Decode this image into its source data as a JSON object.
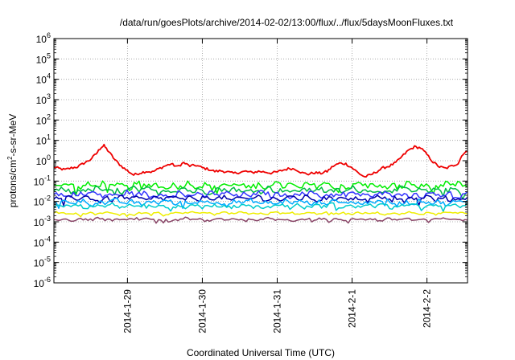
{
  "chart_data": {
    "type": "line",
    "title": "/data/run/goesPlots/archive/2014-02-02/13:00/flux/../flux/5daysMoonFluxes.txt",
    "xlabel": "Coordinated Universal Time (UTC)",
    "ylabel": "protons/cm2-s-sr-MeV",
    "ylabel_parts": {
      "base": "protons/cm",
      "sup": "2",
      "rest": "-s-sr-MeV"
    },
    "y_scale": "log",
    "ylim": [
      1e-06,
      1000000.0
    ],
    "y_ticks": [
      {
        "value": 1e-06,
        "base": "10",
        "exp": "-6"
      },
      {
        "value": 1e-05,
        "base": "10",
        "exp": "-5"
      },
      {
        "value": 0.0001,
        "base": "10",
        "exp": "-4"
      },
      {
        "value": 0.001,
        "base": "10",
        "exp": "-3"
      },
      {
        "value": 0.01,
        "base": "10",
        "exp": "-2"
      },
      {
        "value": 0.1,
        "base": "10",
        "exp": "-1"
      },
      {
        "value": 1,
        "base": "10",
        "exp": "0"
      },
      {
        "value": 10,
        "base": "10",
        "exp": "1"
      },
      {
        "value": 100,
        "base": "10",
        "exp": "2"
      },
      {
        "value": 1000,
        "base": "10",
        "exp": "3"
      },
      {
        "value": 10000,
        "base": "10",
        "exp": "4"
      },
      {
        "value": 100000,
        "base": "10",
        "exp": "5"
      },
      {
        "value": 1000000,
        "base": "10",
        "exp": "6"
      }
    ],
    "xlim": [
      "2014-01-28T00:26",
      "2014-02-02T13:00"
    ],
    "x_ticks": [
      {
        "value": "2014-01-29T00:00",
        "label": "2014-1-29"
      },
      {
        "value": "2014-01-30T00:00",
        "label": "2014-1-30"
      },
      {
        "value": "2014-01-31T00:00",
        "label": "2014-1-31"
      },
      {
        "value": "2014-02-01T00:00",
        "label": "2014-2-1"
      },
      {
        "value": "2014-02-02T00:00",
        "label": "2014-2-2"
      }
    ],
    "grid": true,
    "legend": "none",
    "series": [
      {
        "color": "#ee0000",
        "points": [
          [
            "2014-01-28T00:26",
            0.5
          ],
          [
            "2014-01-28T02:00",
            0.42
          ],
          [
            "2014-01-28T04:00",
            0.36
          ],
          [
            "2014-01-28T06:00",
            0.44
          ],
          [
            "2014-01-28T08:00",
            0.5
          ],
          [
            "2014-01-28T10:00",
            0.75
          ],
          [
            "2014-01-28T12:00",
            1.1
          ],
          [
            "2014-01-28T14:00",
            2.2
          ],
          [
            "2014-01-28T15:30",
            4.5
          ],
          [
            "2014-01-28T16:30",
            5.5
          ],
          [
            "2014-01-28T18:00",
            2.8
          ],
          [
            "2014-01-28T20:00",
            1.1
          ],
          [
            "2014-01-28T22:00",
            0.55
          ],
          [
            "2014-01-29T00:00",
            0.32
          ],
          [
            "2014-01-29T02:00",
            0.2
          ],
          [
            "2014-01-29T04:00",
            0.25
          ],
          [
            "2014-01-29T06:00",
            0.3
          ],
          [
            "2014-01-29T08:00",
            0.28
          ],
          [
            "2014-01-29T10:00",
            0.4
          ],
          [
            "2014-01-29T12:00",
            0.55
          ],
          [
            "2014-01-29T14:00",
            0.7
          ],
          [
            "2014-01-29T16:00",
            0.5
          ],
          [
            "2014-01-29T18:00",
            0.8
          ],
          [
            "2014-01-29T20:00",
            0.55
          ],
          [
            "2014-01-29T22:00",
            0.6
          ],
          [
            "2014-01-30T00:00",
            0.45
          ],
          [
            "2014-01-30T02:00",
            0.38
          ],
          [
            "2014-01-30T04:00",
            0.3
          ],
          [
            "2014-01-30T06:00",
            0.32
          ],
          [
            "2014-01-30T08:00",
            0.28
          ],
          [
            "2014-01-30T10:00",
            0.24
          ],
          [
            "2014-01-30T12:00",
            0.27
          ],
          [
            "2014-01-30T14:00",
            0.3
          ],
          [
            "2014-01-30T16:00",
            0.26
          ],
          [
            "2014-01-30T18:00",
            0.3
          ],
          [
            "2014-01-30T20:00",
            0.28
          ],
          [
            "2014-01-30T22:00",
            0.25
          ],
          [
            "2014-01-31T00:00",
            0.28
          ],
          [
            "2014-01-31T02:00",
            0.35
          ],
          [
            "2014-01-31T04:00",
            0.42
          ],
          [
            "2014-01-31T06:00",
            0.38
          ],
          [
            "2014-01-31T08:00",
            0.25
          ],
          [
            "2014-01-31T10:00",
            0.22
          ],
          [
            "2014-01-31T12:00",
            0.26
          ],
          [
            "2014-01-31T14:00",
            0.24
          ],
          [
            "2014-01-31T16:00",
            0.3
          ],
          [
            "2014-01-31T18:00",
            0.55
          ],
          [
            "2014-01-31T20:00",
            0.75
          ],
          [
            "2014-01-31T22:00",
            0.7
          ],
          [
            "2014-02-01T00:00",
            0.45
          ],
          [
            "2014-02-01T02:00",
            0.25
          ],
          [
            "2014-02-01T04:00",
            0.16
          ],
          [
            "2014-02-01T06:00",
            0.2
          ],
          [
            "2014-02-01T08:00",
            0.3
          ],
          [
            "2014-02-01T10:00",
            0.45
          ],
          [
            "2014-02-01T12:00",
            0.55
          ],
          [
            "2014-02-01T14:00",
            0.8
          ],
          [
            "2014-02-01T16:00",
            1.6
          ],
          [
            "2014-02-01T18:00",
            3.2
          ],
          [
            "2014-02-01T20:00",
            4.8
          ],
          [
            "2014-02-01T22:00",
            4.3
          ],
          [
            "2014-02-02T00:00",
            2.0
          ],
          [
            "2014-02-02T02:00",
            0.85
          ],
          [
            "2014-02-02T04:00",
            0.5
          ],
          [
            "2014-02-02T06:00",
            0.42
          ],
          [
            "2014-02-02T08:00",
            0.55
          ],
          [
            "2014-02-02T10:00",
            0.75
          ],
          [
            "2014-02-02T11:30",
            2.2
          ],
          [
            "2014-02-02T13:00",
            2.8
          ]
        ]
      },
      {
        "color": "#00ee00",
        "level": 0.06,
        "spread": 1.7
      },
      {
        "color": "#00bb44",
        "level": 0.035,
        "spread": 1.6
      },
      {
        "color": "#3333ff",
        "level": 0.022,
        "spread": 1.6
      },
      {
        "color": "#0000aa",
        "level": 0.014,
        "spread": 1.5
      },
      {
        "color": "#00aaff",
        "level": 0.009,
        "spread": 1.5
      },
      {
        "color": "#00cccc",
        "level": 0.006,
        "spread": 1.4
      },
      {
        "color": "#eeee00",
        "level": 0.0026,
        "spread": 1.2
      },
      {
        "color": "#884466",
        "level": 0.0013,
        "spread": 1.25
      }
    ]
  }
}
